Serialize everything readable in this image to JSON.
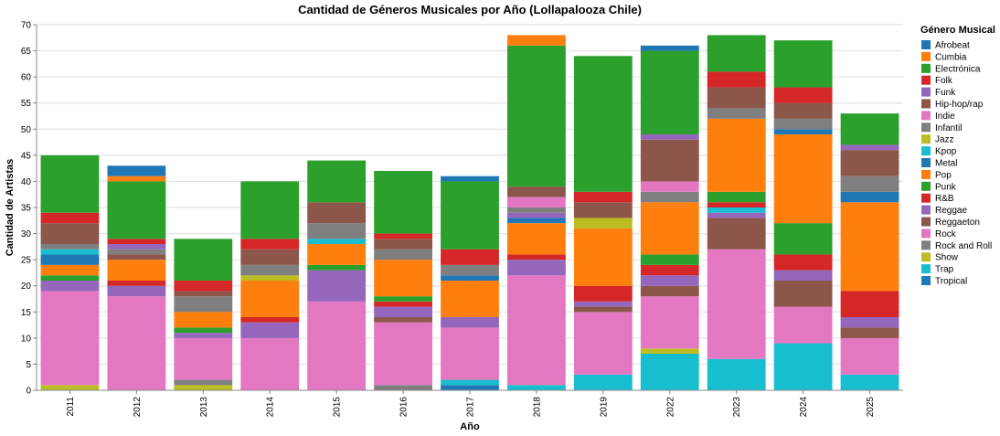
{
  "chart_data": {
    "type": "bar",
    "stacked": true,
    "title": "Cantidad de Géneros Musicales por Año (Lollapalooza Chile)",
    "xlabel": "Año",
    "ylabel": "Cantidad de Artistas",
    "ylim": [
      0,
      70
    ],
    "yticks": [
      0,
      5,
      10,
      15,
      20,
      25,
      30,
      35,
      40,
      45,
      50,
      55,
      60,
      65,
      70
    ],
    "grid": true,
    "legend_title": "Género Musical",
    "legend_position": "right",
    "categories": [
      "2011",
      "2012",
      "2013",
      "2014",
      "2015",
      "2016",
      "2017",
      "2018",
      "2019",
      "2022",
      "2023",
      "2024",
      "2025"
    ],
    "series": [
      {
        "name": "Afrobeat",
        "color": "#1f77b4",
        "values": [
          0,
          0,
          0,
          0,
          0,
          0,
          0,
          0,
          0,
          0,
          0,
          0,
          0
        ]
      },
      {
        "name": "Cumbia",
        "color": "#ff7f0e",
        "values": [
          0,
          0,
          0,
          0,
          0,
          0,
          0,
          0,
          0,
          0,
          0,
          0,
          0
        ]
      },
      {
        "name": "Electrónica",
        "color": "#2ca02c",
        "values": [
          0,
          0,
          0,
          0,
          0,
          0,
          0,
          0,
          0,
          0,
          0,
          0,
          0
        ]
      },
      {
        "name": "Folk",
        "color": "#d62728",
        "values": [
          0,
          0,
          0,
          0,
          0,
          0,
          0,
          0,
          0,
          0,
          0,
          0,
          0
        ]
      },
      {
        "name": "Funk",
        "color": "#9467bd",
        "values": [
          0,
          0,
          0,
          0,
          0,
          0,
          0,
          0,
          0,
          0,
          0,
          0,
          0
        ]
      },
      {
        "name": "Hip-hop/rap",
        "color": "#8c564b",
        "values": [
          0,
          0,
          0,
          0,
          0,
          1,
          0,
          0,
          0,
          0,
          0,
          0,
          0
        ]
      },
      {
        "name": "Indie",
        "color": "#e377c2",
        "values": [
          0,
          0,
          0,
          0,
          0,
          0,
          0,
          0,
          0,
          0,
          0,
          0,
          0
        ]
      },
      {
        "name": "Infantil",
        "color": "#7f7f7f",
        "values": [
          0,
          0,
          1,
          0,
          0,
          0,
          0,
          0,
          0,
          0,
          0,
          0,
          0
        ]
      },
      {
        "name": "Jazz",
        "color": "#bcbd22",
        "values": [
          1,
          0,
          1,
          0,
          0,
          0,
          0,
          0,
          0,
          1,
          0,
          0,
          0
        ]
      },
      {
        "name": "Kpop",
        "color": "#17becf",
        "values": [
          0,
          0,
          0,
          0,
          0,
          0,
          1,
          1,
          3,
          7,
          6,
          9,
          3
        ]
      },
      {
        "name": "Metal",
        "color": "#1f77b4",
        "values": [
          0,
          0,
          0,
          0,
          0,
          0,
          1,
          0,
          0,
          0,
          0,
          0,
          0
        ]
      },
      {
        "name": "Pop",
        "color": "#ff7f0e",
        "values": [
          0,
          0,
          0,
          0,
          0,
          0,
          0,
          0,
          0,
          0,
          0,
          0,
          0
        ]
      },
      {
        "name": "Punk",
        "color": "#2ca02c",
        "values": [
          0,
          0,
          0,
          0,
          0,
          0,
          0,
          0,
          0,
          0,
          0,
          0,
          0
        ]
      },
      {
        "name": "R&B",
        "color": "#d62728",
        "values": [
          0,
          0,
          0,
          0,
          0,
          0,
          0,
          0,
          0,
          0,
          0,
          0,
          0
        ]
      },
      {
        "name": "Reggae",
        "color": "#9467bd",
        "values": [
          0,
          0,
          0,
          0,
          0,
          0,
          0,
          0,
          0,
          0,
          0,
          0,
          0
        ]
      },
      {
        "name": "Reggaeton",
        "color": "#8c564b",
        "values": [
          0,
          0,
          0,
          0,
          0,
          0,
          0,
          0,
          0,
          0,
          0,
          0,
          0
        ]
      },
      {
        "name": "Rock",
        "color": "#e377c2",
        "values": [
          18,
          18,
          8,
          10,
          17,
          12,
          10,
          21,
          12,
          10,
          21,
          7,
          7
        ]
      },
      {
        "name": "Rock and Roll",
        "color": "#7f7f7f",
        "values": [
          0,
          0,
          0,
          0,
          0,
          0,
          0,
          0,
          0,
          0,
          0,
          0,
          0
        ]
      },
      {
        "name": "Show",
        "color": "#bcbd22",
        "values": [
          0,
          0,
          0,
          0,
          0,
          0,
          0,
          0,
          0,
          0,
          0,
          0,
          0
        ]
      },
      {
        "name": "Trap",
        "color": "#17becf",
        "values": [
          0,
          0,
          0,
          0,
          0,
          0,
          0,
          0,
          0,
          0,
          0,
          0,
          0
        ]
      },
      {
        "name": "Tropical",
        "color": "#1f77b4",
        "values": [
          0,
          0,
          0,
          0,
          0,
          0,
          0,
          0,
          0,
          0,
          0,
          0,
          0
        ]
      }
    ],
    "stacks": [
      [
        [
          "#bcbd22",
          1
        ],
        [
          "#e377c2",
          18
        ],
        [
          "#9467bd",
          2
        ],
        [
          "#2ca02c",
          1
        ],
        [
          "#ff7f0e",
          2
        ],
        [
          "#1f77b4",
          2
        ],
        [
          "#17becf",
          1
        ],
        [
          "#7f7f7f",
          1
        ],
        [
          "#8c564b",
          4
        ],
        [
          "#d62728",
          2
        ],
        [
          "#2ca02c",
          11
        ]
      ],
      [
        [
          "#e377c2",
          18
        ],
        [
          "#9467bd",
          2
        ],
        [
          "#d62728",
          1
        ],
        [
          "#ff7f0e",
          4
        ],
        [
          "#8c564b",
          1
        ],
        [
          "#7f7f7f",
          1
        ],
        [
          "#9467bd",
          1
        ],
        [
          "#d62728",
          1
        ],
        [
          "#2ca02c",
          11
        ],
        [
          "#ff7f0e",
          1
        ],
        [
          "#1f77b4",
          2
        ]
      ],
      [
        [
          "#bcbd22",
          1
        ],
        [
          "#7f7f7f",
          1
        ],
        [
          "#e377c2",
          8
        ],
        [
          "#9467bd",
          1
        ],
        [
          "#2ca02c",
          1
        ],
        [
          "#ff7f0e",
          3
        ],
        [
          "#7f7f7f",
          3
        ],
        [
          "#8c564b",
          1
        ],
        [
          "#d62728",
          2
        ],
        [
          "#2ca02c",
          8
        ]
      ],
      [
        [
          "#e377c2",
          10
        ],
        [
          "#9467bd",
          3
        ],
        [
          "#d62728",
          1
        ],
        [
          "#ff7f0e",
          7
        ],
        [
          "#bcbd22",
          1
        ],
        [
          "#7f7f7f",
          2
        ],
        [
          "#8c564b",
          3
        ],
        [
          "#d62728",
          2
        ],
        [
          "#2ca02c",
          11
        ]
      ],
      [
        [
          "#e377c2",
          17
        ],
        [
          "#9467bd",
          6
        ],
        [
          "#2ca02c",
          1
        ],
        [
          "#ff7f0e",
          4
        ],
        [
          "#17becf",
          1
        ],
        [
          "#7f7f7f",
          3
        ],
        [
          "#8c564b",
          4
        ],
        [
          "#2ca02c",
          8
        ]
      ],
      [
        [
          "#7f7f7f",
          1
        ],
        [
          "#e377c2",
          12
        ],
        [
          "#8c564b",
          1
        ],
        [
          "#9467bd",
          2
        ],
        [
          "#d62728",
          1
        ],
        [
          "#2ca02c",
          1
        ],
        [
          "#ff7f0e",
          7
        ],
        [
          "#7f7f7f",
          2
        ],
        [
          "#8c564b",
          2
        ],
        [
          "#d62728",
          1
        ],
        [
          "#2ca02c",
          12
        ]
      ],
      [
        [
          "#1f77b4",
          1
        ],
        [
          "#17becf",
          1
        ],
        [
          "#e377c2",
          10
        ],
        [
          "#9467bd",
          2
        ],
        [
          "#ff7f0e",
          7
        ],
        [
          "#1f77b4",
          1
        ],
        [
          "#7f7f7f",
          2
        ],
        [
          "#d62728",
          3
        ],
        [
          "#2ca02c",
          13
        ],
        [
          "#1f77b4",
          1
        ]
      ],
      [
        [
          "#17becf",
          1
        ],
        [
          "#e377c2",
          21
        ],
        [
          "#9467bd",
          3
        ],
        [
          "#d62728",
          1
        ],
        [
          "#ff7f0e",
          6
        ],
        [
          "#1f77b4",
          1
        ],
        [
          "#9467bd",
          1
        ],
        [
          "#7f7f7f",
          1
        ],
        [
          "#e377c2",
          2
        ],
        [
          "#8c564b",
          2
        ],
        [
          "#2ca02c",
          27
        ],
        [
          "#ff7f0e",
          2
        ]
      ],
      [
        [
          "#17becf",
          3
        ],
        [
          "#e377c2",
          12
        ],
        [
          "#8c564b",
          1
        ],
        [
          "#9467bd",
          1
        ],
        [
          "#d62728",
          3
        ],
        [
          "#ff7f0e",
          11
        ],
        [
          "#bcbd22",
          2
        ],
        [
          "#8c564b",
          3
        ],
        [
          "#d62728",
          2
        ],
        [
          "#2ca02c",
          26
        ]
      ],
      [
        [
          "#17becf",
          7
        ],
        [
          "#bcbd22",
          1
        ],
        [
          "#e377c2",
          10
        ],
        [
          "#8c564b",
          2
        ],
        [
          "#9467bd",
          2
        ],
        [
          "#d62728",
          2
        ],
        [
          "#2ca02c",
          2
        ],
        [
          "#ff7f0e",
          10
        ],
        [
          "#7f7f7f",
          2
        ],
        [
          "#e377c2",
          2
        ],
        [
          "#8c564b",
          8
        ],
        [
          "#9467bd",
          1
        ],
        [
          "#2ca02c",
          16
        ],
        [
          "#1f77b4",
          1
        ]
      ],
      [
        [
          "#17becf",
          6
        ],
        [
          "#e377c2",
          21
        ],
        [
          "#8c564b",
          6
        ],
        [
          "#9467bd",
          1
        ],
        [
          "#17becf",
          1
        ],
        [
          "#d62728",
          1
        ],
        [
          "#2ca02c",
          2
        ],
        [
          "#ff7f0e",
          14
        ],
        [
          "#7f7f7f",
          2
        ],
        [
          "#8c564b",
          4
        ],
        [
          "#d62728",
          3
        ],
        [
          "#2ca02c",
          7
        ]
      ],
      [
        [
          "#17becf",
          9
        ],
        [
          "#e377c2",
          7
        ],
        [
          "#8c564b",
          5
        ],
        [
          "#9467bd",
          2
        ],
        [
          "#d62728",
          3
        ],
        [
          "#2ca02c",
          6
        ],
        [
          "#ff7f0e",
          17
        ],
        [
          "#1f77b4",
          1
        ],
        [
          "#7f7f7f",
          2
        ],
        [
          "#8c564b",
          3
        ],
        [
          "#d62728",
          3
        ],
        [
          "#2ca02c",
          9
        ]
      ],
      [
        [
          "#17becf",
          3
        ],
        [
          "#e377c2",
          7
        ],
        [
          "#8c564b",
          2
        ],
        [
          "#9467bd",
          2
        ],
        [
          "#d62728",
          5
        ],
        [
          "#ff7f0e",
          17
        ],
        [
          "#1f77b4",
          2
        ],
        [
          "#7f7f7f",
          3
        ],
        [
          "#8c564b",
          5
        ],
        [
          "#9467bd",
          1
        ],
        [
          "#2ca02c",
          6
        ]
      ]
    ]
  }
}
